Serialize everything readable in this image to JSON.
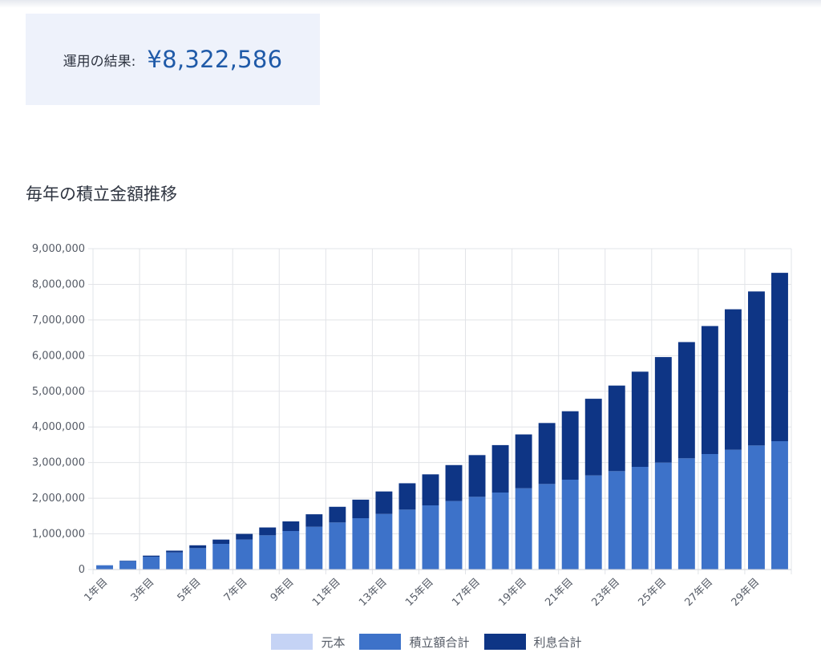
{
  "result": {
    "label": "運用の結果:",
    "value": "¥8,322,586"
  },
  "section_title": "毎年の積立金額推移",
  "colors": {
    "principal": "#c5d3f5",
    "accumulated": "#3d72c9",
    "interest": "#0e3585",
    "grid": "#e2e4e8",
    "tick_text": "#555b66",
    "result_bg": "#eef2fb",
    "result_value": "#1f5aa8"
  },
  "chart_data": {
    "type": "bar",
    "stacked": true,
    "x_tick_labels": [
      "1年目",
      "3年目",
      "5年目",
      "7年目",
      "9年目",
      "11年目",
      "13年目",
      "15年目",
      "17年目",
      "19年目",
      "21年目",
      "23年目",
      "25年目",
      "27年目",
      "29年目"
    ],
    "y_tick_labels": [
      "9,000,000",
      "8,000,000",
      "7,000,000",
      "6,000,000",
      "5,000,000",
      "4,000,000",
      "3,000,000",
      "2,000,000",
      "1,000,000",
      "0"
    ],
    "ylim": [
      0,
      9000000
    ],
    "grid": true,
    "legend_position": "bottom",
    "legend": [
      "元本",
      "積立額合計",
      "利息合計"
    ],
    "years": [
      1,
      2,
      3,
      4,
      5,
      6,
      7,
      8,
      9,
      10,
      11,
      12,
      13,
      14,
      15,
      16,
      17,
      18,
      19,
      20,
      21,
      22,
      23,
      24,
      25,
      26,
      27,
      28,
      29,
      30
    ],
    "series": [
      {
        "name": "元本",
        "values": [
          0,
          0,
          0,
          0,
          0,
          0,
          0,
          0,
          0,
          0,
          0,
          0,
          0,
          0,
          0,
          0,
          0,
          0,
          0,
          0,
          0,
          0,
          0,
          0,
          0,
          0,
          0,
          0,
          0,
          0
        ]
      },
      {
        "name": "積立額合計",
        "values": [
          120000,
          240000,
          360000,
          480000,
          600000,
          720000,
          840000,
          960000,
          1080000,
          1200000,
          1320000,
          1440000,
          1560000,
          1680000,
          1800000,
          1920000,
          2040000,
          2160000,
          2280000,
          2400000,
          2520000,
          2640000,
          2760000,
          2880000,
          3000000,
          3120000,
          3240000,
          3360000,
          3480000,
          3600000
        ]
      },
      {
        "name": "利息合計",
        "values": [
          0,
          10000,
          30000,
          50000,
          80000,
          120000,
          160000,
          220000,
          270000,
          350000,
          440000,
          520000,
          630000,
          740000,
          870000,
          1010000,
          1170000,
          1330000,
          1510000,
          1710000,
          1920000,
          2150000,
          2400000,
          2670000,
          2960000,
          3260000,
          3590000,
          3940000,
          4320000,
          4722586
        ]
      }
    ]
  }
}
